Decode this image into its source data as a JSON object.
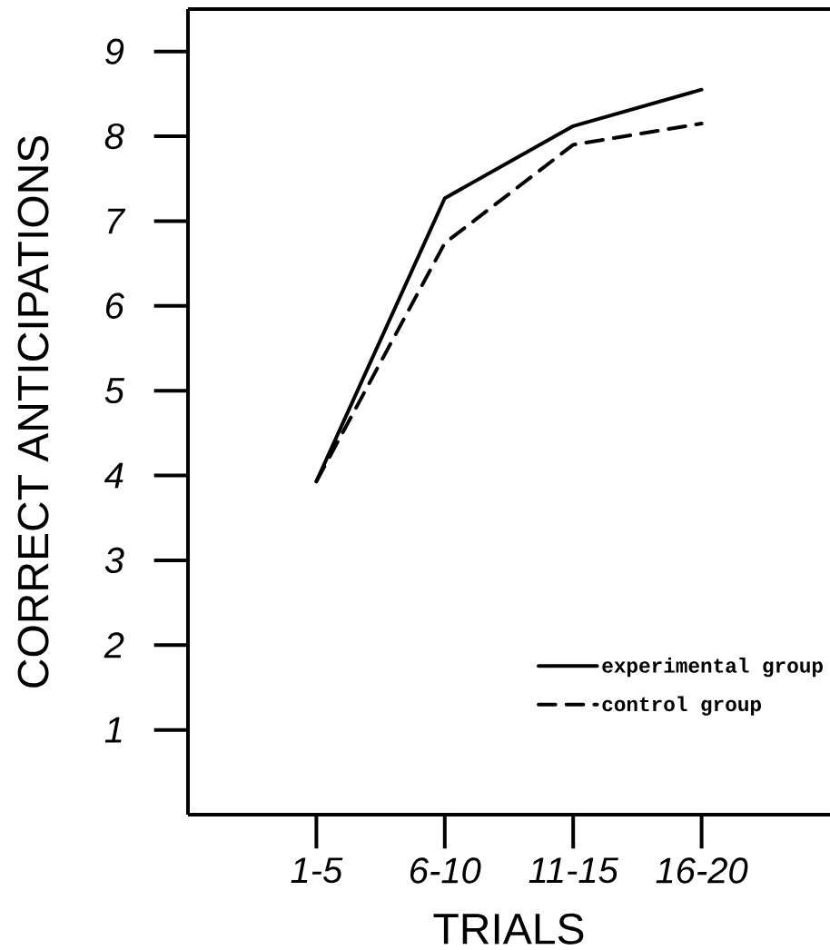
{
  "chart_data": {
    "type": "line",
    "xlabel": "TRIALS",
    "ylabel": "CORRECT ANTICIPATIONS",
    "categories": [
      "1-5",
      "6-10",
      "11-15",
      "16-20"
    ],
    "ylim": [
      0,
      9.5
    ],
    "yticks": [
      1,
      2,
      3,
      4,
      5,
      6,
      7,
      8,
      9
    ],
    "legend": "bottom right",
    "series": [
      {
        "name": "experimental group",
        "color": "#000000",
        "line_style": "solid",
        "values": [
          3.93,
          7.27,
          8.12,
          8.55
        ]
      },
      {
        "name": "control group",
        "color": "#000000",
        "line_style": "dashed",
        "values": [
          3.93,
          6.74,
          7.9,
          8.15
        ]
      }
    ]
  }
}
